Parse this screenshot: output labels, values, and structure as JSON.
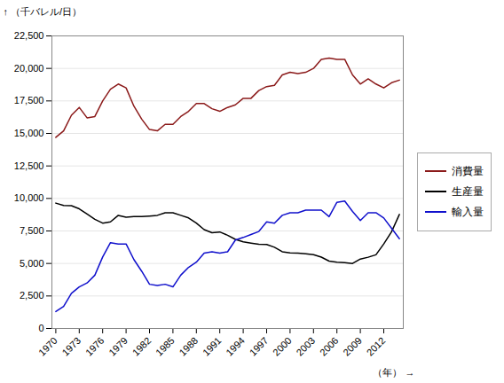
{
  "chart_data": {
    "type": "line",
    "xlabel": "（年）",
    "ylabel": "（千バレル/日）",
    "x": [
      1970,
      1971,
      1972,
      1973,
      1974,
      1975,
      1976,
      1977,
      1978,
      1979,
      1980,
      1981,
      1982,
      1983,
      1984,
      1985,
      1986,
      1987,
      1988,
      1989,
      1990,
      1991,
      1992,
      1993,
      1994,
      1995,
      1996,
      1997,
      1998,
      1999,
      2000,
      2001,
      2002,
      2003,
      2004,
      2005,
      2006,
      2007,
      2008,
      2009,
      2010,
      2011,
      2012,
      2013,
      2014
    ],
    "series": [
      {
        "name": "消費量",
        "color": "#8B1A1A",
        "values": [
          14700,
          15200,
          16400,
          17000,
          16200,
          16300,
          17500,
          18400,
          18800,
          18500,
          17100,
          16100,
          15300,
          15200,
          15700,
          15700,
          16300,
          16700,
          17300,
          17300,
          16900,
          16700,
          17000,
          17200,
          17700,
          17700,
          18300,
          18600,
          18700,
          19500,
          19700,
          19600,
          19700,
          20000,
          20700,
          20800,
          20700,
          20700,
          19500,
          18800,
          19200,
          18800,
          18500,
          18900,
          19100
        ]
      },
      {
        "name": "生産量",
        "color": "#000000",
        "values": [
          9640,
          9460,
          9440,
          9200,
          8800,
          8400,
          8100,
          8200,
          8700,
          8550,
          8600,
          8600,
          8650,
          8700,
          8900,
          8900,
          8700,
          8500,
          8100,
          7600,
          7360,
          7420,
          7170,
          6850,
          6660,
          6560,
          6470,
          6460,
          6250,
          5900,
          5820,
          5800,
          5750,
          5680,
          5490,
          5180,
          5100,
          5070,
          5000,
          5340,
          5480,
          5670,
          6500,
          7440,
          8770
        ]
      },
      {
        "name": "輸入量",
        "color": "#1010CC",
        "values": [
          1300,
          1700,
          2700,
          3200,
          3500,
          4100,
          5500,
          6600,
          6500,
          6500,
          5300,
          4400,
          3400,
          3300,
          3400,
          3200,
          4100,
          4700,
          5100,
          5800,
          5900,
          5800,
          5900,
          6800,
          7000,
          7230,
          7460,
          8200,
          8100,
          8700,
          8900,
          8900,
          9100,
          9100,
          9100,
          8600,
          9700,
          9800,
          9000,
          8300,
          8900,
          8900,
          8500,
          7700,
          6900
        ]
      }
    ],
    "xlim": [
      1969.5,
      2014.5
    ],
    "xticks": [
      1970,
      1973,
      1976,
      1979,
      1982,
      1985,
      1988,
      1991,
      1994,
      1997,
      2000,
      2003,
      2006,
      2009,
      2012
    ],
    "ylim": [
      0,
      22500
    ],
    "yticks": [
      0,
      {
        "value": 2500,
        "label": "2,500"
      },
      {
        "value": 5000,
        "label": "5,000"
      },
      {
        "value": 7500,
        "label": "7,500"
      },
      {
        "value": 10000,
        "label": "10,000"
      },
      {
        "value": 12500,
        "label": "12,500"
      },
      {
        "value": 15000,
        "label": "15,000"
      },
      {
        "value": 17500,
        "label": "17,500"
      },
      {
        "value": 20000,
        "label": "20,000"
      },
      {
        "value": 22500,
        "label": "22,500"
      }
    ],
    "grid": true,
    "legend": "right"
  }
}
